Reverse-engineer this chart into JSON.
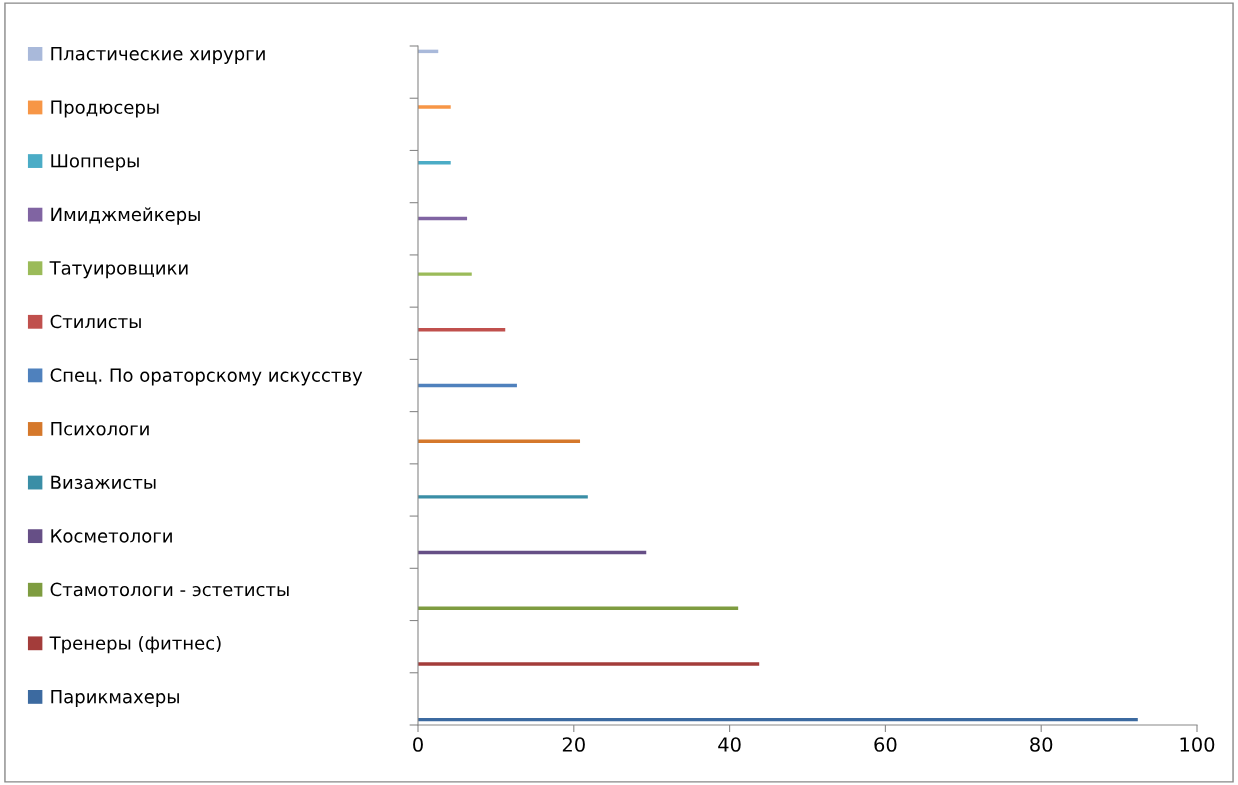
{
  "chart_data": {
    "type": "bar",
    "orientation": "horizontal",
    "categories": [
      null,
      null,
      null,
      null,
      null,
      null,
      null,
      null,
      null,
      null,
      null,
      null,
      null
    ],
    "series": [
      {
        "name": "Пластические хирурги",
        "color": "#a9b9da",
        "values": [
          2.6,
          null,
          null,
          null,
          null,
          null,
          null,
          null,
          null,
          null,
          null,
          null,
          null
        ]
      },
      {
        "name": "Продюсеры",
        "color": "#f79646",
        "values": [
          null,
          4.2,
          null,
          null,
          null,
          null,
          null,
          null,
          null,
          null,
          null,
          null,
          null
        ]
      },
      {
        "name": "Шопперы",
        "color": "#4bacc6",
        "values": [
          null,
          null,
          4.2,
          null,
          null,
          null,
          null,
          null,
          null,
          null,
          null,
          null,
          null
        ]
      },
      {
        "name": "Имиджмейкеры",
        "color": "#8064a2",
        "values": [
          null,
          null,
          null,
          6.3,
          null,
          null,
          null,
          null,
          null,
          null,
          null,
          null,
          null
        ]
      },
      {
        "name": "Татуировщики",
        "color": "#9bbb59",
        "values": [
          null,
          null,
          null,
          null,
          6.9,
          null,
          null,
          null,
          null,
          null,
          null,
          null,
          null
        ]
      },
      {
        "name": "Стилисты",
        "color": "#c0504d",
        "values": [
          null,
          null,
          null,
          null,
          null,
          11.2,
          null,
          null,
          null,
          null,
          null,
          null,
          null
        ]
      },
      {
        "name": "Спец. По ораторскому искусству",
        "color": "#4f81bd",
        "values": [
          null,
          null,
          null,
          null,
          null,
          null,
          12.7,
          null,
          null,
          null,
          null,
          null,
          null
        ]
      },
      {
        "name": "Психологи",
        "color": "#d5782b",
        "values": [
          null,
          null,
          null,
          null,
          null,
          null,
          null,
          20.8,
          null,
          null,
          null,
          null,
          null
        ]
      },
      {
        "name": "Визажисты",
        "color": "#3a8ea6",
        "values": [
          null,
          null,
          null,
          null,
          null,
          null,
          null,
          null,
          21.8,
          null,
          null,
          null,
          null
        ]
      },
      {
        "name": "Косметологи",
        "color": "#664f86",
        "values": [
          null,
          null,
          null,
          null,
          null,
          null,
          null,
          null,
          null,
          29.3,
          null,
          null,
          null
        ]
      },
      {
        "name": "Стамотологи - эстетисты",
        "color": "#7e9c40",
        "values": [
          null,
          null,
          null,
          null,
          null,
          null,
          null,
          null,
          null,
          null,
          41.1,
          null,
          null
        ]
      },
      {
        "name": "Тренеры (фитнес)",
        "color": "#a33c3a",
        "values": [
          null,
          null,
          null,
          null,
          null,
          null,
          null,
          null,
          null,
          null,
          null,
          43.8,
          null
        ]
      },
      {
        "name": "Парикмахеры",
        "color": "#3c6aa0",
        "values": [
          null,
          null,
          null,
          null,
          null,
          null,
          null,
          null,
          null,
          null,
          null,
          null,
          92.4
        ]
      }
    ],
    "xlim": [
      0,
      100
    ],
    "xticks": [
      0,
      20,
      40,
      60,
      80,
      100
    ],
    "tick_labels": "x",
    "grid": false,
    "legend": "left"
  }
}
